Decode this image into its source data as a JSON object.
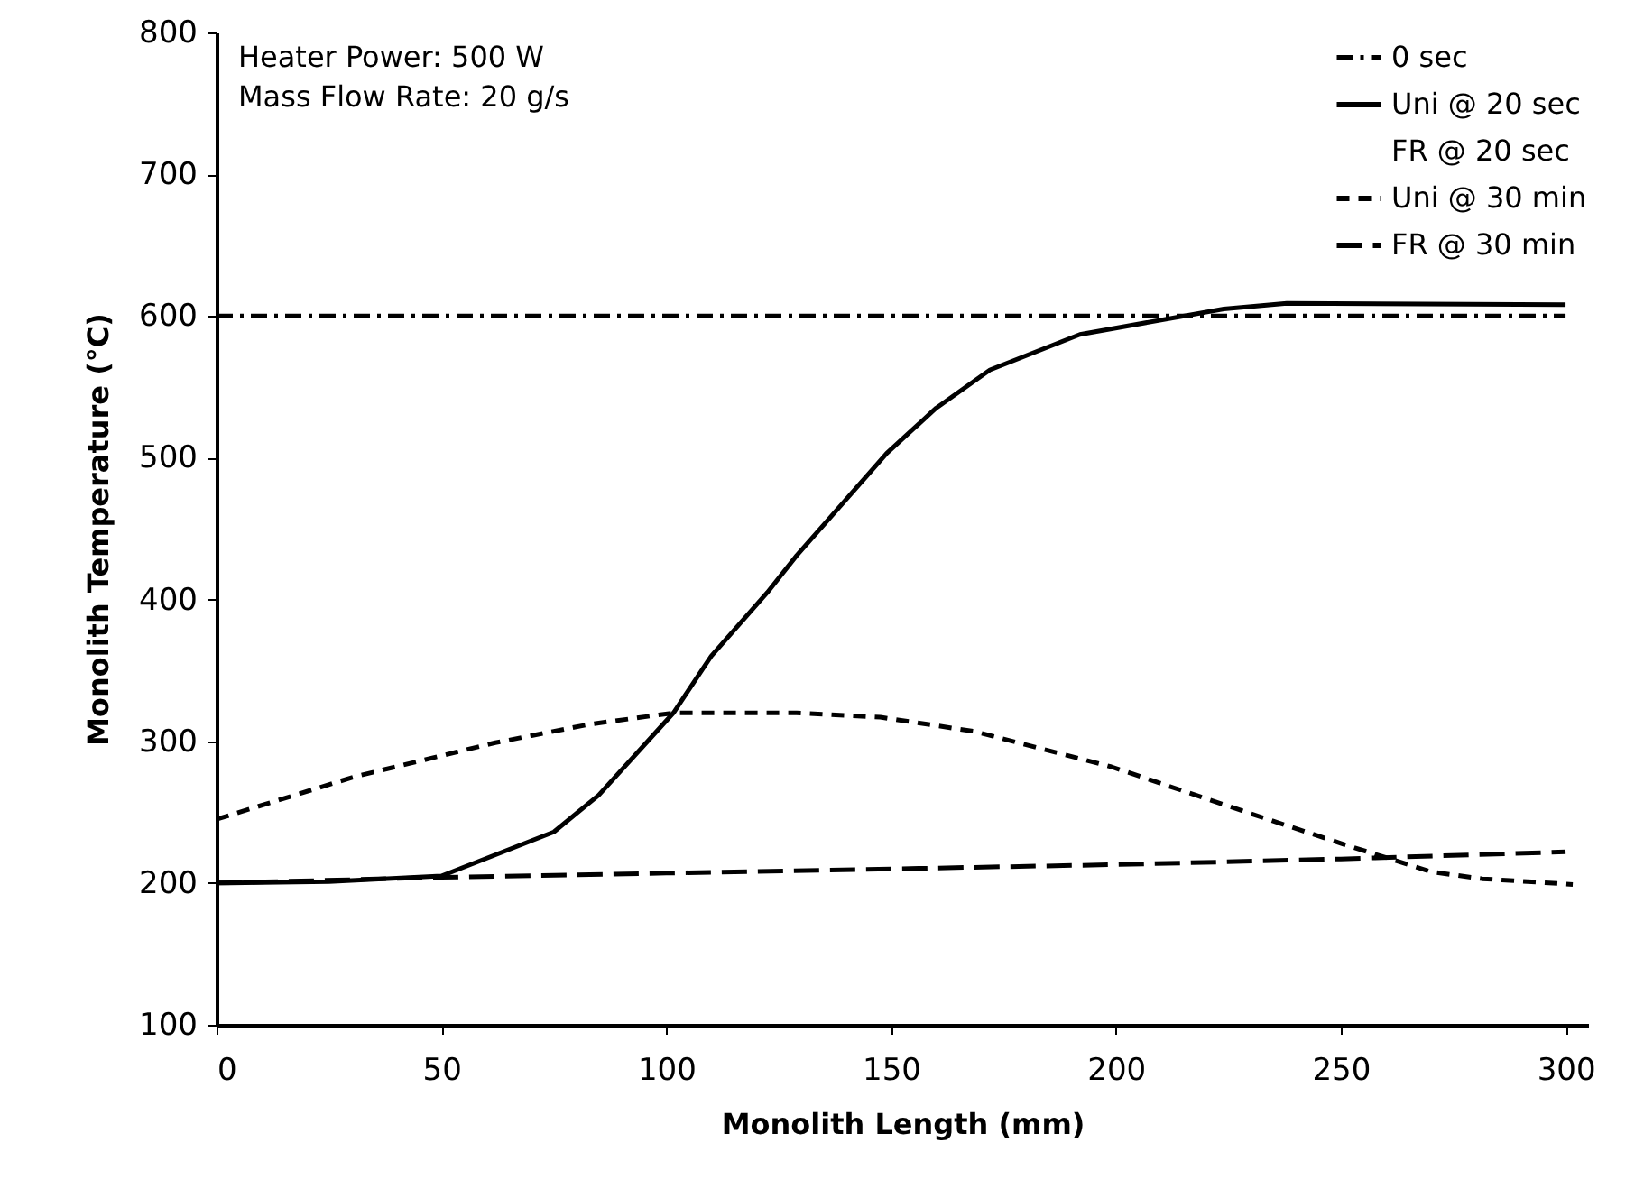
{
  "chart_data": {
    "type": "line",
    "xlabel": "Monolith Length (mm)",
    "ylabel": "Monolith Temperature (°C)",
    "annotations": [
      "Heater Power: 500 W",
      "Mass Flow Rate: 20 g/s"
    ],
    "xlim": [
      0,
      305
    ],
    "xticks": [
      0,
      50,
      100,
      150,
      200,
      250,
      300
    ],
    "ylim": [
      100,
      800
    ],
    "yticks": [
      100,
      200,
      300,
      400,
      500,
      600,
      700,
      800
    ],
    "grid": false,
    "legend": "top right",
    "marker": "none",
    "series": [
      {
        "name": "0 sec",
        "color": "#000000",
        "line_style": "dashdot",
        "x": [
          0,
          300
        ],
        "values": [
          600,
          600
        ]
      },
      {
        "name": "Uni @ 20 sec",
        "color": "#000000",
        "line_style": "solid",
        "x": [
          0,
          25,
          50,
          75,
          85,
          101.6,
          110,
          122.5,
          129,
          149,
          160,
          172,
          192,
          224,
          238,
          300
        ],
        "values": [
          200,
          201,
          205,
          236,
          262,
          320,
          360,
          405,
          431,
          503,
          535,
          562,
          587,
          605,
          609,
          608
        ]
      },
      {
        "name": "FR @ 20 sec"
      },
      {
        "name": "Uni @ 30 min",
        "color": "#000000",
        "line_style": "dashed",
        "x": [
          0,
          30.7,
          62,
          83,
          101.6,
          122.5,
          129,
          147.6,
          168.5,
          199,
          229,
          250,
          270,
          281.5,
          301.6
        ],
        "values": [
          245,
          275,
          299,
          312,
          320,
          320,
          320,
          317,
          307,
          282,
          250,
          228,
          208,
          203,
          199
        ]
      },
      {
        "name": "FR @ 30 min",
        "color": "#000000",
        "line_style": "longdashed",
        "x": [
          0,
          50,
          100,
          150,
          200,
          250,
          300
        ],
        "values": [
          200,
          204,
          207,
          210,
          213,
          217,
          222
        ]
      }
    ]
  }
}
